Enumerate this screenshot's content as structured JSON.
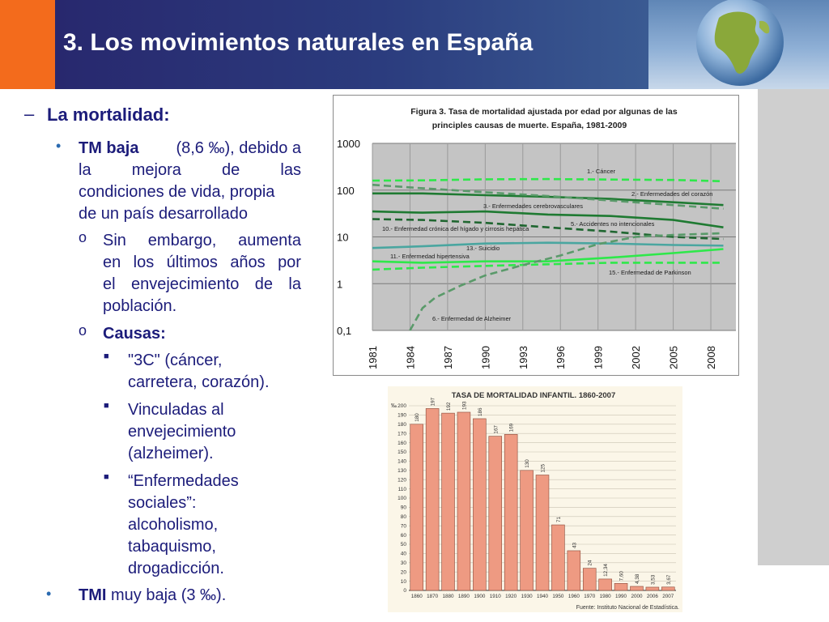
{
  "header": {
    "title": "3. Los movimientos naturales en España",
    "colors": {
      "accent": "#f36b1c",
      "band": "#2b3c7e"
    }
  },
  "content": {
    "section": "La mortalidad:",
    "tm": {
      "bold": "TM baja",
      "lines": [
        "(8,6 ‰), debido a",
        "la mejora de las",
        "condiciones de vida, propia",
        "de un país desarrollado"
      ]
    },
    "sub1_lines": [
      "Sin embargo, aumenta",
      "en los últimos años por",
      "el envejecimiento de la",
      "población."
    ],
    "causas": "Causas:",
    "causas_items": [
      [
        "\"3C\" (cáncer,",
        "carretera, corazón)."
      ],
      [
        "Vinculadas al",
        "envejecimiento",
        "(alzheimer)."
      ],
      [
        "“Enfermedades",
        "sociales”:",
        "alcoholismo,",
        "tabaquismo,",
        "drogadicción."
      ]
    ],
    "tmi": {
      "bold": "TMI",
      "rest": " muy baja (3 ‰)."
    }
  },
  "chart_data": [
    {
      "type": "line",
      "title_lines": [
        "Figura 3. Tasa de mortalidad ajustada por edad por algunas de las",
        "principles causas de muerte. España, 1981-2009"
      ],
      "yscale": "log",
      "ylim": [
        0.1,
        1000
      ],
      "yticks": [
        "1000",
        "100",
        "10",
        "1",
        "0,1"
      ],
      "xlim": [
        1981,
        2010
      ],
      "xticks": [
        "1981",
        "1984",
        "1987",
        "1990",
        "1993",
        "1996",
        "1999",
        "2002",
        "2005",
        "2008"
      ],
      "grid": true,
      "series": [
        {
          "name": "1.- Cáncer",
          "color": "#2ee84a",
          "dash": true,
          "x": [
            1981,
            1985,
            1990,
            1995,
            2000,
            2005,
            2009
          ],
          "y": [
            160,
            162,
            170,
            172,
            168,
            165,
            155
          ]
        },
        {
          "name": "2.- Enfermedades del corazón",
          "color": "#1f7a32",
          "dash": false,
          "x": [
            1981,
            1985,
            1990,
            1995,
            2000,
            2005,
            2009
          ],
          "y": [
            85,
            85,
            78,
            72,
            65,
            55,
            48
          ]
        },
        {
          "name": "3.- Enfermedades cerebrovasculares",
          "color": "#5a9a6a",
          "dash": true,
          "x": [
            1981,
            1985,
            1990,
            1995,
            2000,
            2005,
            2009
          ],
          "y": [
            130,
            110,
            90,
            75,
            60,
            48,
            40
          ]
        },
        {
          "name": "5.- Accidentes no intencionales",
          "color": "#1f7a32",
          "dash": false,
          "x": [
            1981,
            1985,
            1990,
            1995,
            2000,
            2005,
            2009
          ],
          "y": [
            35,
            33,
            35,
            30,
            28,
            23,
            16
          ]
        },
        {
          "name": "10.- Enfermedad crónica del hígado y cirrosis hepática",
          "color": "#1f6630",
          "dash": true,
          "x": [
            1981,
            1985,
            1990,
            1995,
            2000,
            2005,
            2009
          ],
          "y": [
            24,
            23,
            20,
            16,
            13,
            10,
            9
          ]
        },
        {
          "name": "13.- Suicidio",
          "color": "#4aa6a0",
          "dash": false,
          "x": [
            1981,
            1985,
            1990,
            1995,
            2000,
            2005,
            2009
          ],
          "y": [
            5.8,
            6.3,
            7.2,
            7.5,
            7.2,
            6.7,
            6.5
          ]
        },
        {
          "name": "11.- Enfermedad hipertensiva",
          "color": "#2ee84a",
          "dash": false,
          "x": [
            1981,
            1985,
            1990,
            1995,
            2000,
            2005,
            2009
          ],
          "y": [
            3.0,
            2.8,
            3.0,
            3.0,
            3.6,
            4.5,
            5.5
          ]
        },
        {
          "name": "15.- Enfermedad de Parkinson",
          "color": "#2ee84a",
          "dash": true,
          "x": [
            1981,
            1985,
            1990,
            1995,
            2000,
            2005,
            2009
          ],
          "y": [
            2.0,
            2.2,
            2.4,
            2.6,
            2.8,
            2.8,
            2.8
          ]
        },
        {
          "name": "6.- Enfermedad de Alzheimer",
          "color": "#5a9a6a",
          "dash": true,
          "x": [
            1984,
            1985,
            1986,
            1988,
            1990,
            1993,
            1996,
            1999,
            2002,
            2005,
            2009
          ],
          "y": [
            0.1,
            0.3,
            0.5,
            0.9,
            1.5,
            2.5,
            4,
            7,
            10,
            11,
            12
          ]
        }
      ]
    },
    {
      "type": "bar",
      "title": "TASA DE MORTALIDAD INFANTIL. 1860-2007",
      "ylabel": "‰",
      "ylim": [
        0,
        200
      ],
      "yticks": [
        0,
        10,
        20,
        30,
        40,
        50,
        60,
        70,
        80,
        90,
        100,
        110,
        120,
        130,
        140,
        150,
        160,
        170,
        180,
        190,
        200
      ],
      "categories": [
        "1860",
        "1870",
        "1880",
        "1890",
        "1900",
        "1910",
        "1920",
        "1930",
        "1940",
        "1950",
        "1960",
        "1970",
        "1980",
        "1990",
        "2000",
        "2006",
        "2007"
      ],
      "values": [
        180,
        197,
        192,
        193,
        186,
        167,
        169,
        130,
        125,
        71,
        43,
        24,
        12.34,
        7.6,
        4.38,
        3.53,
        3.67
      ],
      "value_labels": [
        "180",
        "197",
        "192",
        "193",
        "186",
        "167",
        "169",
        "130",
        "125",
        "71",
        "43",
        "24",
        "12,34",
        "7,60",
        "4,38",
        "3,53",
        "3,67"
      ],
      "source": "Fuente: Instituto Nacional de Estadística.",
      "bar_color": "#ee9a82",
      "grid": true
    }
  ]
}
